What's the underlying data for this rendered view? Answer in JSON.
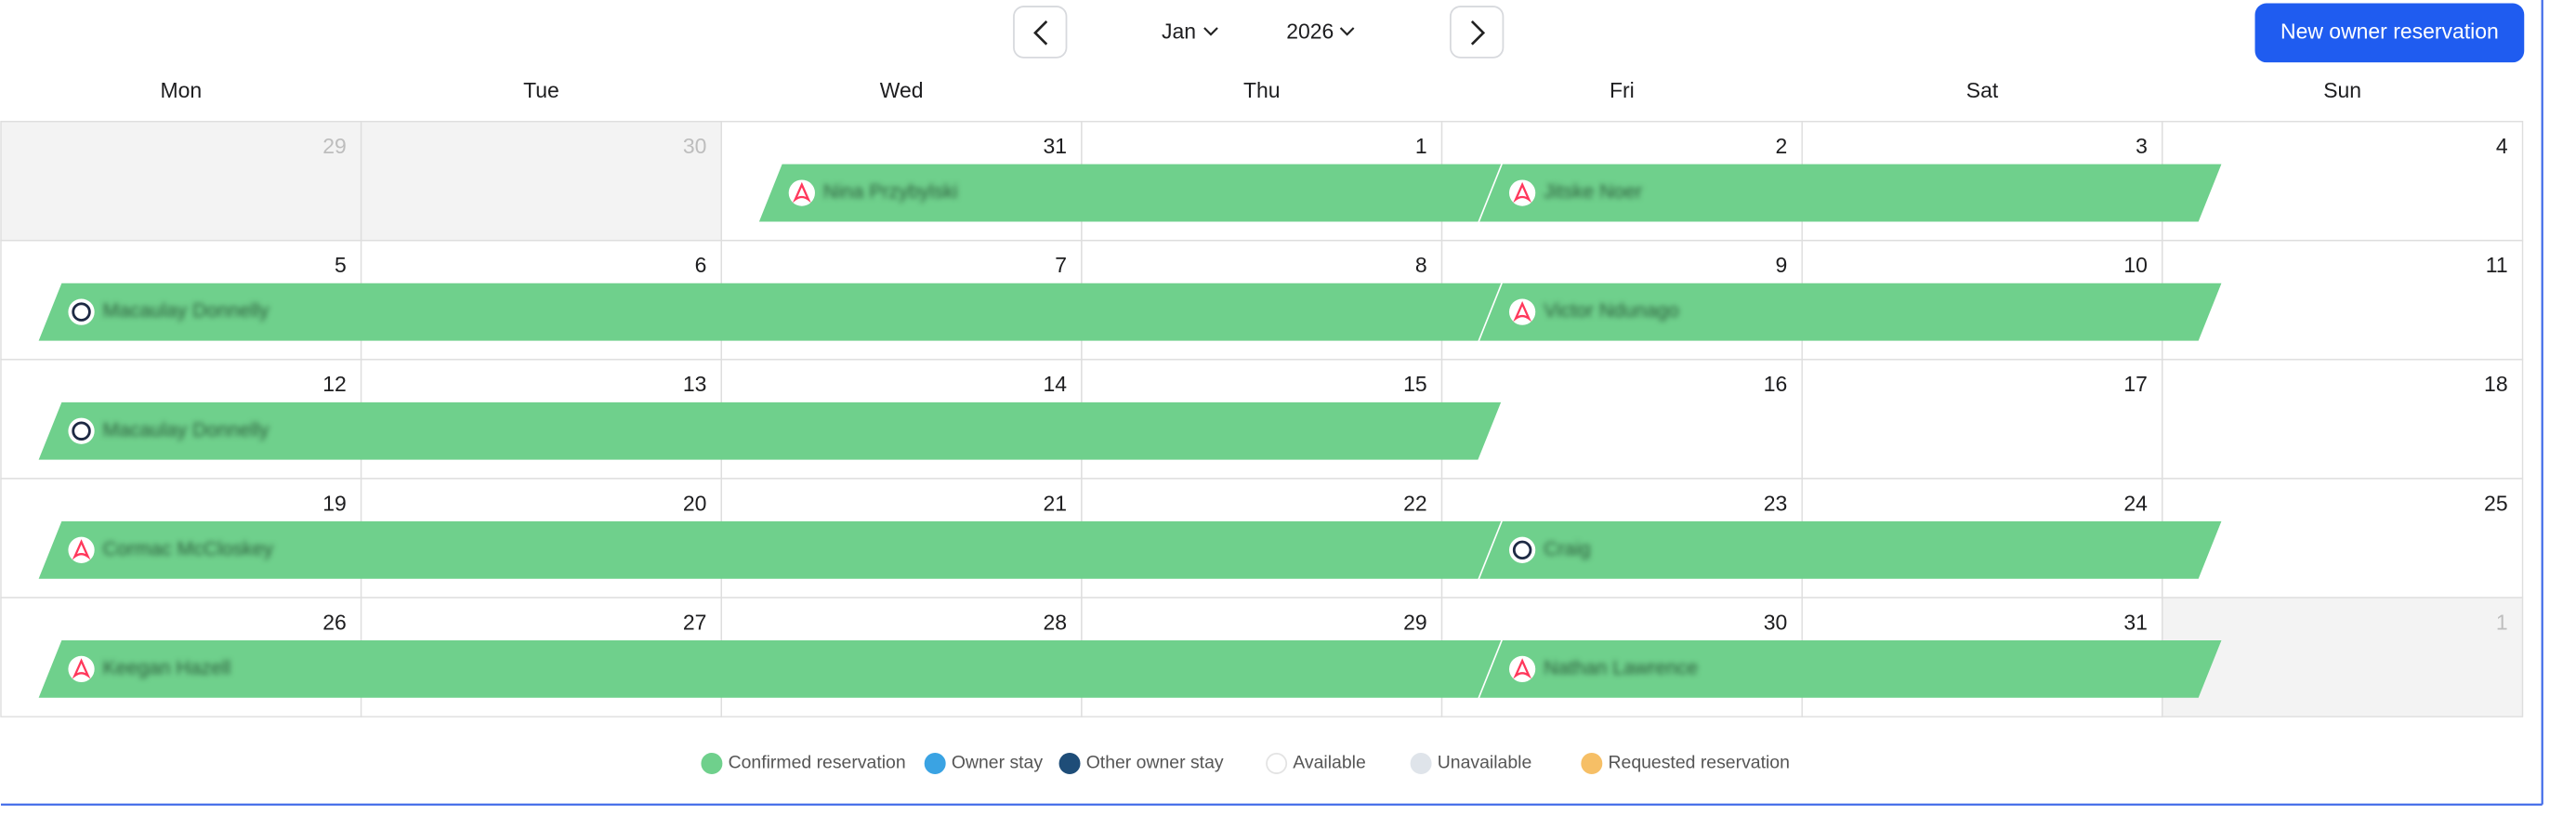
{
  "header": {
    "month": "Jan",
    "year": "2026",
    "new_button": "New owner reservation"
  },
  "weekdays": [
    "Mon",
    "Tue",
    "Wed",
    "Thu",
    "Fri",
    "Sat",
    "Sun"
  ],
  "weeks": [
    {
      "days": [
        "29",
        "30",
        "31",
        "1",
        "2",
        "3",
        "4"
      ],
      "reservations": [
        {
          "name": "Nina Przybylski",
          "source": "airbnb"
        },
        {
          "name": "Jitske Noer",
          "source": "airbnb"
        }
      ]
    },
    {
      "days": [
        "5",
        "6",
        "7",
        "8",
        "9",
        "10",
        "11"
      ],
      "reservations": [
        {
          "name": "Macaulay Donnelly",
          "source": "other"
        },
        {
          "name": "Victor Ndunago",
          "source": "airbnb"
        }
      ]
    },
    {
      "days": [
        "12",
        "13",
        "14",
        "15",
        "16",
        "17",
        "18"
      ],
      "reservations": [
        {
          "name": "Macaulay Donnelly",
          "source": "other"
        }
      ]
    },
    {
      "days": [
        "19",
        "20",
        "21",
        "22",
        "23",
        "24",
        "25"
      ],
      "reservations": [
        {
          "name": "Cormac McCloskey",
          "source": "airbnb"
        },
        {
          "name": "Craig",
          "source": "other"
        }
      ]
    },
    {
      "days": [
        "26",
        "27",
        "28",
        "29",
        "30",
        "31",
        "1"
      ],
      "reservations": [
        {
          "name": "Keegan Hazell",
          "source": "airbnb"
        },
        {
          "name": "Nathan Lawrence",
          "source": "airbnb"
        }
      ]
    }
  ],
  "legend": [
    {
      "label": "Confirmed reservation",
      "color": "#6fd08c"
    },
    {
      "label": "Owner stay",
      "color": "#3aa3e3"
    },
    {
      "label": "Other owner stay",
      "color": "#1e4d78"
    },
    {
      "label": "Available",
      "color": "#ffffff"
    },
    {
      "label": "Unavailable",
      "color": "#dfe4ea"
    },
    {
      "label": "Requested reservation",
      "color": "#f6bf66"
    }
  ]
}
